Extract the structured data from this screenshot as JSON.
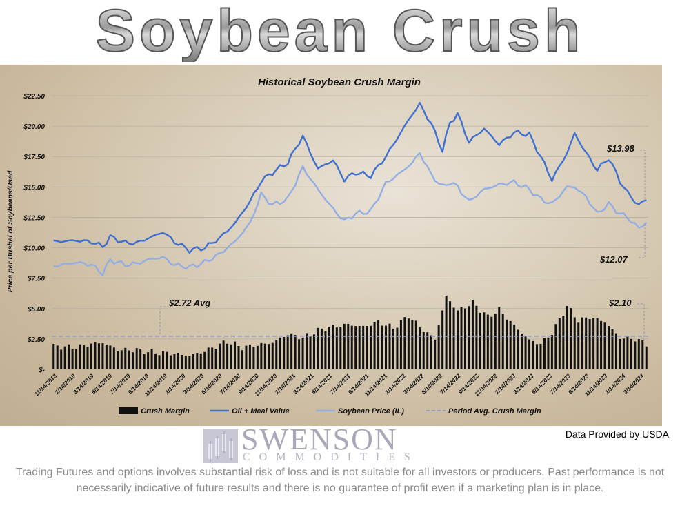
{
  "banner": {
    "title": "Soybean Crush"
  },
  "chart_data": {
    "type": "line",
    "title": "Historical Soybean Crush Margin",
    "ylabel": "Price per Bushel of Soybeans/Used",
    "ylim": [
      0,
      22.5
    ],
    "yticks": [
      "$-",
      "$2.50",
      "$5.00",
      "$7.50",
      "$10.00",
      "$12.50",
      "$15.00",
      "$17.50",
      "$20.00",
      "$22.50"
    ],
    "x_tick_labels": [
      "11/14/2018",
      "1/14/2019",
      "3/14/2019",
      "5/14/2019",
      "7/14/2019",
      "9/14/2019",
      "11/14/2019",
      "1/14/2020",
      "3/14/2020",
      "5/14/2020",
      "7/14/2020",
      "9/14/2020",
      "11/14/2020",
      "1/14/2021",
      "3/14/2021",
      "5/14/2021",
      "7/14/2021",
      "9/14/2021",
      "11/14/2021",
      "1/14/2022",
      "3/14/2022",
      "5/14/2022",
      "7/14/2022",
      "9/14/2022",
      "11/14/2022",
      "1/14/2023",
      "3/14/2023",
      "5/14/2023",
      "7/14/2023",
      "9/14/2023",
      "11/14/2023",
      "1/14/2024",
      "3/14/2024"
    ],
    "grid": true,
    "legend_position": "bottom",
    "series": [
      {
        "name": "Crush Margin",
        "style": "bar",
        "color": "#111111",
        "key_points": [
          [
            0,
            1.9
          ],
          [
            6,
            1.8
          ],
          [
            10,
            2.1
          ],
          [
            13,
            2.2
          ],
          [
            17,
            1.6
          ],
          [
            22,
            1.6
          ],
          [
            26,
            1.4
          ],
          [
            32,
            1.3
          ],
          [
            36,
            1.1
          ],
          [
            40,
            1.5
          ],
          [
            46,
            2.3
          ],
          [
            50,
            1.8
          ],
          [
            54,
            2.0
          ],
          [
            58,
            2.2
          ],
          [
            62,
            2.9
          ],
          [
            66,
            2.6
          ],
          [
            70,
            3.2
          ],
          [
            74,
            3.5
          ],
          [
            78,
            3.7
          ],
          [
            82,
            3.5
          ],
          [
            86,
            3.9
          ],
          [
            90,
            3.4
          ],
          [
            94,
            4.4
          ],
          [
            98,
            3.2
          ],
          [
            101,
            2.5
          ],
          [
            104,
            6.0
          ],
          [
            107,
            4.8
          ],
          [
            111,
            5.5
          ],
          [
            115,
            4.3
          ],
          [
            118,
            4.9
          ],
          [
            122,
            3.6
          ],
          [
            126,
            2.4
          ],
          [
            129,
            2.1
          ],
          [
            132,
            3.0
          ],
          [
            136,
            5.2
          ],
          [
            139,
            4.0
          ],
          [
            142,
            4.3
          ],
          [
            146,
            3.9
          ],
          [
            150,
            2.6
          ],
          [
            154,
            2.5
          ],
          [
            157,
            2.1
          ]
        ]
      },
      {
        "name": "Oil + Meal Value",
        "style": "line",
        "color": "#3f6fcf",
        "key_points": [
          [
            0,
            10.5
          ],
          [
            6,
            10.6
          ],
          [
            10,
            10.5
          ],
          [
            13,
            10.1
          ],
          [
            15,
            10.9
          ],
          [
            19,
            10.4
          ],
          [
            22,
            10.4
          ],
          [
            26,
            10.9
          ],
          [
            29,
            11.3
          ],
          [
            32,
            10.5
          ],
          [
            36,
            9.8
          ],
          [
            40,
            10.0
          ],
          [
            44,
            10.8
          ],
          [
            48,
            12.0
          ],
          [
            52,
            13.8
          ],
          [
            55,
            15.5
          ],
          [
            58,
            16.2
          ],
          [
            62,
            17.0
          ],
          [
            66,
            19.2
          ],
          [
            68,
            17.8
          ],
          [
            70,
            16.5
          ],
          [
            74,
            17.2
          ],
          [
            77,
            15.6
          ],
          [
            80,
            16.2
          ],
          [
            84,
            15.9
          ],
          [
            88,
            17.5
          ],
          [
            92,
            19.5
          ],
          [
            95,
            21.0
          ],
          [
            97,
            21.8
          ],
          [
            100,
            20.2
          ],
          [
            103,
            18.0
          ],
          [
            105,
            20.3
          ],
          [
            107,
            21.0
          ],
          [
            110,
            18.7
          ],
          [
            114,
            19.8
          ],
          [
            118,
            18.5
          ],
          [
            122,
            19.5
          ],
          [
            126,
            19.3
          ],
          [
            129,
            17.5
          ],
          [
            132,
            15.6
          ],
          [
            136,
            17.8
          ],
          [
            138,
            19.4
          ],
          [
            141,
            17.8
          ],
          [
            144,
            16.4
          ],
          [
            147,
            17.4
          ],
          [
            150,
            15.5
          ],
          [
            152,
            14.5
          ],
          [
            155,
            13.5
          ],
          [
            157,
            14.0
          ]
        ]
      },
      {
        "name": "Soybean Price (IL)",
        "style": "line",
        "color": "#93aee3",
        "key_points": [
          [
            0,
            8.5
          ],
          [
            6,
            8.8
          ],
          [
            10,
            8.6
          ],
          [
            13,
            7.9
          ],
          [
            15,
            9.0
          ],
          [
            19,
            8.6
          ],
          [
            22,
            8.7
          ],
          [
            26,
            9.1
          ],
          [
            29,
            9.2
          ],
          [
            32,
            8.6
          ],
          [
            36,
            8.4
          ],
          [
            40,
            8.8
          ],
          [
            44,
            9.5
          ],
          [
            48,
            10.5
          ],
          [
            52,
            12.0
          ],
          [
            55,
            14.4
          ],
          [
            58,
            13.5
          ],
          [
            62,
            14.0
          ],
          [
            66,
            16.6
          ],
          [
            70,
            14.8
          ],
          [
            74,
            13.2
          ],
          [
            77,
            12.2
          ],
          [
            80,
            12.8
          ],
          [
            84,
            13.0
          ],
          [
            88,
            15.3
          ],
          [
            92,
            16.2
          ],
          [
            95,
            17.0
          ],
          [
            97,
            17.8
          ],
          [
            100,
            16.0
          ],
          [
            103,
            15.0
          ],
          [
            105,
            15.4
          ],
          [
            107,
            15.0
          ],
          [
            110,
            13.8
          ],
          [
            114,
            14.8
          ],
          [
            118,
            15.2
          ],
          [
            122,
            15.4
          ],
          [
            126,
            14.8
          ],
          [
            129,
            14.0
          ],
          [
            132,
            13.6
          ],
          [
            136,
            15.0
          ],
          [
            138,
            15.0
          ],
          [
            141,
            14.2
          ],
          [
            144,
            12.8
          ],
          [
            147,
            13.6
          ],
          [
            150,
            12.8
          ],
          [
            152,
            12.5
          ],
          [
            155,
            11.6
          ],
          [
            157,
            12.1
          ]
        ]
      },
      {
        "name": "Period Avg. Crush Margin",
        "style": "dashed",
        "color": "#8fa0c8",
        "value": 2.72
      }
    ],
    "annotations": [
      {
        "text": "$2.72 Avg",
        "value": 2.72
      },
      {
        "text": "$13.98",
        "series": "Oil + Meal Value",
        "value": 13.98
      },
      {
        "text": "$12.07",
        "series": "Soybean Price (IL)",
        "value": 12.07
      },
      {
        "text": "$2.10",
        "series": "Crush Margin",
        "value": 2.1
      }
    ]
  },
  "source_note": "Data Provided by USDA",
  "logo": {
    "word": "SWENSON",
    "sub": "COMMODITIES"
  },
  "disclaimer": "Trading Futures and options involves substantial risk of loss and is not suitable for all investors or producers. Past performance is not necessarily indicative of future results and there is no guarantee of profit even if a marketing plan is in place."
}
